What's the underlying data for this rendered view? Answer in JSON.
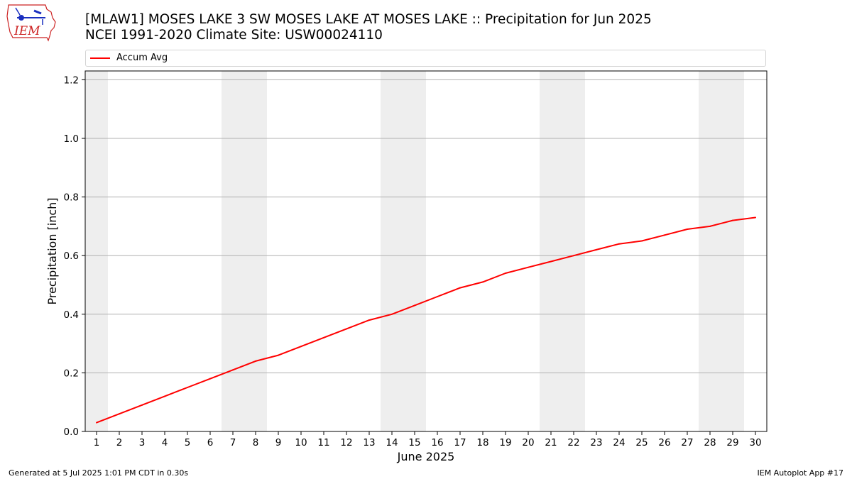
{
  "title_line1": "[MLAW1] MOSES LAKE 3 SW MOSES LAKE AT MOSES LAKE :: Precipitation for Jun 2025",
  "title_line2": "NCEI 1991-2020 Climate Site: USW00024110",
  "logo_text": "IEM",
  "footer_left": "Generated at 5 Jul 2025 1:01 PM CDT in 0.30s",
  "footer_right": "IEM Autoplot App #17",
  "colors": {
    "line": "#ff0000",
    "weekend_band": "#eeeeee",
    "grid": "#b0b0b0",
    "logo": "#cc2222"
  },
  "chart_data": {
    "type": "line",
    "xlabel": "June 2025",
    "ylabel": "Precipitation [inch]",
    "x": [
      1,
      2,
      3,
      4,
      5,
      6,
      7,
      8,
      9,
      10,
      11,
      12,
      13,
      14,
      15,
      16,
      17,
      18,
      19,
      20,
      21,
      22,
      23,
      24,
      25,
      26,
      27,
      28,
      29,
      30
    ],
    "x_tick_labels": [
      "1",
      "2",
      "3",
      "4",
      "5",
      "6",
      "7",
      "8",
      "9",
      "10",
      "11",
      "12",
      "13",
      "14",
      "15",
      "16",
      "17",
      "18",
      "19",
      "20",
      "21",
      "22",
      "23",
      "24",
      "25",
      "26",
      "27",
      "28",
      "29",
      "30"
    ],
    "xlim": [
      0.5,
      30.5
    ],
    "ylim": [
      0,
      1.23
    ],
    "y_ticks": [
      0.0,
      0.2,
      0.4,
      0.6,
      0.8,
      1.0,
      1.2
    ],
    "y_tick_labels": [
      "0.0",
      "0.2",
      "0.4",
      "0.6",
      "0.8",
      "1.0",
      "1.2"
    ],
    "grid": "horizontal",
    "legend_position": "top",
    "weekend_bands": [
      [
        0.5,
        1.5
      ],
      [
        6.5,
        8.5
      ],
      [
        13.5,
        15.5
      ],
      [
        20.5,
        22.5
      ],
      [
        27.5,
        29.5
      ]
    ],
    "series": [
      {
        "name": "Accum Avg",
        "values": [
          0.03,
          0.06,
          0.09,
          0.12,
          0.15,
          0.18,
          0.21,
          0.24,
          0.26,
          0.29,
          0.32,
          0.35,
          0.38,
          0.4,
          0.43,
          0.46,
          0.49,
          0.51,
          0.54,
          0.56,
          0.58,
          0.6,
          0.62,
          0.64,
          0.65,
          0.67,
          0.69,
          0.7,
          0.72,
          0.73
        ]
      }
    ]
  }
}
